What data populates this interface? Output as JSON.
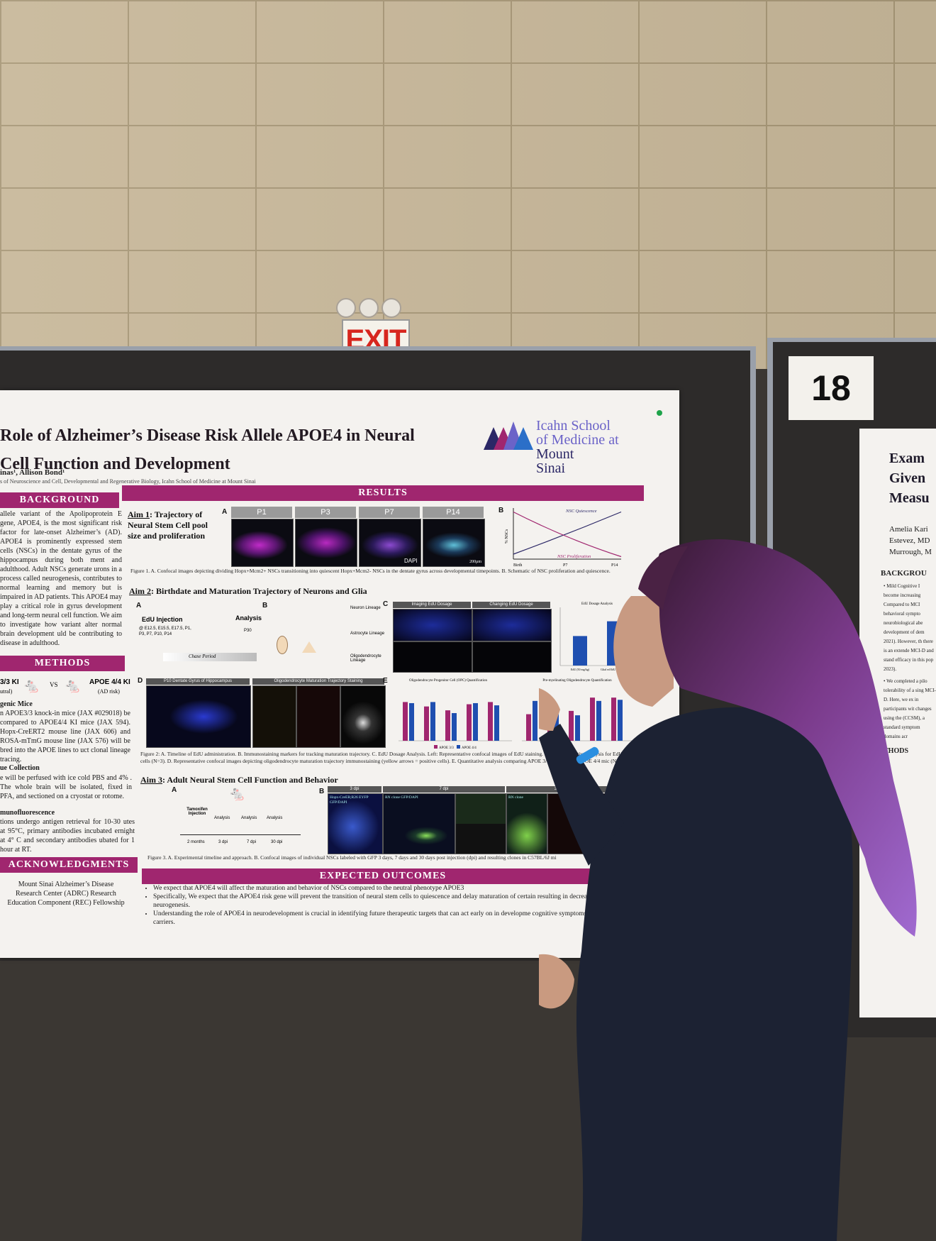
{
  "poster": {
    "title_line1": "Role of Alzheimer’s Disease Risk Allele APOE4 in Neural",
    "title_line2": "Cell Function and Development",
    "authors": "inas¹, Allison Bond¹",
    "affiliation": "s of Neuroscience and Cell, Developmental and Regenerative Biology, Icahn School of Medicine at Mount Sinai",
    "logo_line1": "Icahn School",
    "logo_line2": "of Medicine at",
    "logo_line3": "Mount",
    "logo_line4": "Sinai",
    "background_head": "BACKGROUND",
    "background_text": "allele variant of the Apolipoprotein E gene, APOE4, is the most significant risk factor for late-onset Alzheimer’s (AD). APOE4 is prominently expressed stem cells (NSCs) in the dentate gyrus of the hippocampus during both ment and adulthood. Adult NSCs generate urons in a process called neurogenesis, contributes to normal learning and memory but is impaired in AD patients. This APOE4 may play a critical role in gyrus development and long-term neural cell function. We aim to investigate how variant alter normal brain development uld be contributing to disease in adulthood.",
    "methods_head": "METHODS",
    "methods_ki1": "3/3 KI",
    "methods_ki1_sub": "utral)",
    "methods_vs": "VS",
    "methods_ki2": "APOE 4/4 KI",
    "methods_ki2_sub": "(AD risk)",
    "methods_mice_head": "genic Mice",
    "methods_mice_text": "n APOE3/3 knock-in mice (JAX #029018) be compared to APOE4/4 KI mice (JAX 594). Hopx-CreERT2 mouse line (JAX 606) and ROSA-mTmG mouse line (JAX 576) will be bred into the APOE lines to uct clonal lineage tracing.",
    "methods_tissue_head": "ue Collection",
    "methods_tissue_text": "e will be perfused with ice cold PBS and 4% . The whole brain will be isolated, fixed in PFA, and sectioned on a cryostat or rotome.",
    "methods_if_head": "munofluorescence",
    "methods_if_text": "tions undergo antigen retrieval for 10-30 utes at 95°C, primary antibodies incubated ernight at 4° C and secondary antibodies ubated for 1 hour at RT.",
    "ack_head": "ACKNOWLEDGMENTS",
    "ack_text": "Mount Sinai Alzheimer’s Disease Research Center (ADRC) Research Education Component (REC) Fellowship",
    "results_head": "RESULTS",
    "aim1_prefix": "Aim 1",
    "aim1_text": ": Trajectory of Neural Stem Cell pool size and proliferation",
    "aim1_panels": [
      "P1",
      "P3",
      "P7",
      "P14"
    ],
    "aim1_dapi": "DAPI",
    "aim1_scale": "200μm",
    "chart_b_ylabel": "% NSCs",
    "chart_b_line1": "NSC Quiescence",
    "chart_b_line2": "NSC Proliferation",
    "chart_b_ticks": [
      "Birth",
      "P7",
      "P14"
    ],
    "fig1_caption": "Figure 1. A. Confocal images depicting dividing Hopx+Mcm2+ NSCs transitioning into quiescent Hopx+Mcm2- NSCs in the dentate gyrus across developmental timepoints. B. Schematic of NSC proliferation and quiescence.",
    "aim2_prefix": "Aim 2",
    "aim2_text": ": Birthdate and Maturation Trajectory of Neurons and Glia",
    "aim2_edu": "EdU Injection",
    "aim2_edu_times": "@ E12.5, E15.5, E17.5, P1, P3, P7, P10, P14",
    "aim2_analysis": "Analysis",
    "aim2_p30": "P30",
    "aim2_chase": "Chase Period",
    "aim2_lineages": [
      "Neuron Lineage",
      "Astrocyte Lineage",
      "Oligodendrocyte Lineage"
    ],
    "aim2_c_titles": [
      "Imaging EdU Dosage",
      "Changing EdU Dosage"
    ],
    "aim2_c_chart_title": "EdU Dosage Analysis",
    "aim2_d_titles": [
      "P10 Dentate Gyrus of Hippocampus",
      "Oligodendrocyte Maturation Trajectory Staining"
    ],
    "aim2_e_titles": [
      "Oligodendrocyte Progenitor Cell (OPC) Quantification",
      "Pre-myelinating Oligodendrocyte Quantification"
    ],
    "aim2_e_legend": [
      "APOE 3/3",
      "APOE 4/4"
    ],
    "fig2_caption": "Figure 2: A. Timeline of EdU administration. B. Immunostaining markers for tracking maturation trajectory. C. EdU Dosage Analysis. Left: Representative confocal images of EdU staining. Right: Quantitative analysis for EdU+ cells (N=3). D. Representative confocal images depicting oligodendrocyte maturation trajectory immunostaining (yellow arrows = positive cells). E. Quantitative analysis comparing APOE 3/3 KI mice and APOE 4/4 mic (N=1).",
    "aim3_prefix": "Aim 3",
    "aim3_text": ": Adult Neural Stem Cell Function and Behavior",
    "aim3_timeline": [
      "Tamoxifen Injection",
      "Analysis",
      "Analysis",
      "Analysis"
    ],
    "aim3_ticks": [
      "2 months",
      "3 dpi",
      "7 dpi",
      "30 dpi"
    ],
    "aim3_panels": [
      "3 dpi",
      "7 dpi",
      "30 dpi"
    ],
    "aim3_sublabels": [
      "Hopx-CreER;R26 EYFP GFP/DAPI",
      "RN clone GFP/DAPI",
      "RN clone"
    ],
    "fig3_caption": "Figure 3. A. Experimental timeline and approach. B. Confocal images of individual NSCs labeled with GFP 3 days, 7 days and 30 days post injection (dpi) and resulting clones in C57BL/6J mi",
    "outcomes_head": "EXPECTED OUTCOMES",
    "outcomes": [
      "We expect that APOE4 will affect the maturation and behavior of NSCs compared to the neutral phenotype APOE3",
      "Specifically, We expect that the APOE4 risk gene will prevent the transition of neural stem cells to quiescence and delay maturation of certain resulting in decreased adult neurogenesis.",
      "Understanding the role of APOE4 in neurodevelopment is crucial in identifying future therapeutic targets that can act early on in developme cognitive symptoms in APOE4 carriers."
    ]
  },
  "neighbor": {
    "number": "18",
    "title": [
      "Exam",
      "Given",
      "Measu"
    ],
    "authors": [
      "Amelia Kari",
      "Estevez, MD",
      "Murrough, M"
    ],
    "background_head": "BACKGROU",
    "bullets": [
      "• Mild Cognitive I become increasing Compared to MCI behavioral sympto neurobiological abe development of dem 2021). However, th there is an extende MCI-D and stand efficacy in this pop 2023).",
      "• We completed a pilo tolerability of a sing MCI-D. Here, we ex in participants wit changes using the (CCSM), a standard symptom domains acr"
    ],
    "methods_head": "THODS"
  },
  "exit_sign": "EXIT",
  "chart_data": [
    {
      "type": "line",
      "title": "",
      "ylabel": "% NSCs",
      "x": [
        "Birth",
        "P7",
        "P14"
      ],
      "series": [
        {
          "name": "NSC Quiescence",
          "values": [
            10,
            50,
            95
          ]
        },
        {
          "name": "NSC Proliferation",
          "values": [
            95,
            40,
            5
          ]
        }
      ]
    },
    {
      "type": "bar",
      "title": "EdU Dosage Analysis",
      "categories": [
        "EdU (50 mg/kg)",
        "Glial ed EdU (5 mg/kg)"
      ],
      "values": [
        52,
        78
      ]
    },
    {
      "type": "bar",
      "title": "Oligodendrocyte Progenitor Cell (OPC) Quantification",
      "series": [
        {
          "name": "APOE 3/3",
          "values": [
            70,
            62,
            55,
            66,
            70
          ]
        },
        {
          "name": "APOE 4/4",
          "values": [
            68,
            70,
            50,
            68,
            64
          ]
        }
      ]
    },
    {
      "type": "bar",
      "title": "Pre-myelinating Oligodendrocyte Quantification",
      "series": [
        {
          "name": "APOE 3/3",
          "values": [
            48,
            66,
            54,
            78,
            78
          ]
        },
        {
          "name": "APOE 4/4",
          "values": [
            72,
            58,
            46,
            72,
            74
          ]
        }
      ]
    }
  ]
}
